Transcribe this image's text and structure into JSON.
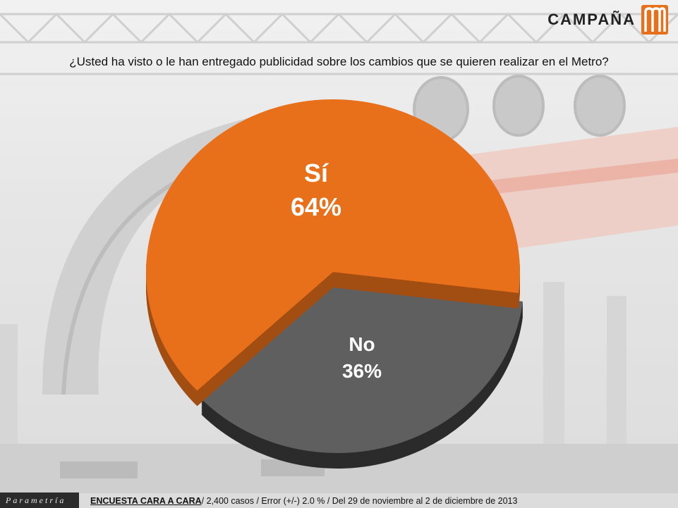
{
  "brand": {
    "name": "CAMPAÑA",
    "logo_icon": "metro-m-icon",
    "color": "#e8701b"
  },
  "question": "¿Usted ha visto o le han entregado publicidad sobre los cambios que se quieren realizar en el Metro?",
  "chart_data": {
    "type": "pie",
    "title": "¿Usted ha visto o le han entregado publicidad sobre los cambios que se quieren realizar en el Metro?",
    "slices": [
      {
        "label": "Sí",
        "value": 64,
        "display": "64%",
        "color": "#e8701b"
      },
      {
        "label": "No",
        "value": 36,
        "display": "36%",
        "color": "#5f5f5f"
      }
    ],
    "legend": "none"
  },
  "footer": {
    "source_logo": "Parametría",
    "survey_label": "ENCUESTA CARA A CARA",
    "details": "/ 2,400 casos / Error (+/-) 2.0 % / Del 29 de noviembre al 2 de diciembre de 2013"
  }
}
